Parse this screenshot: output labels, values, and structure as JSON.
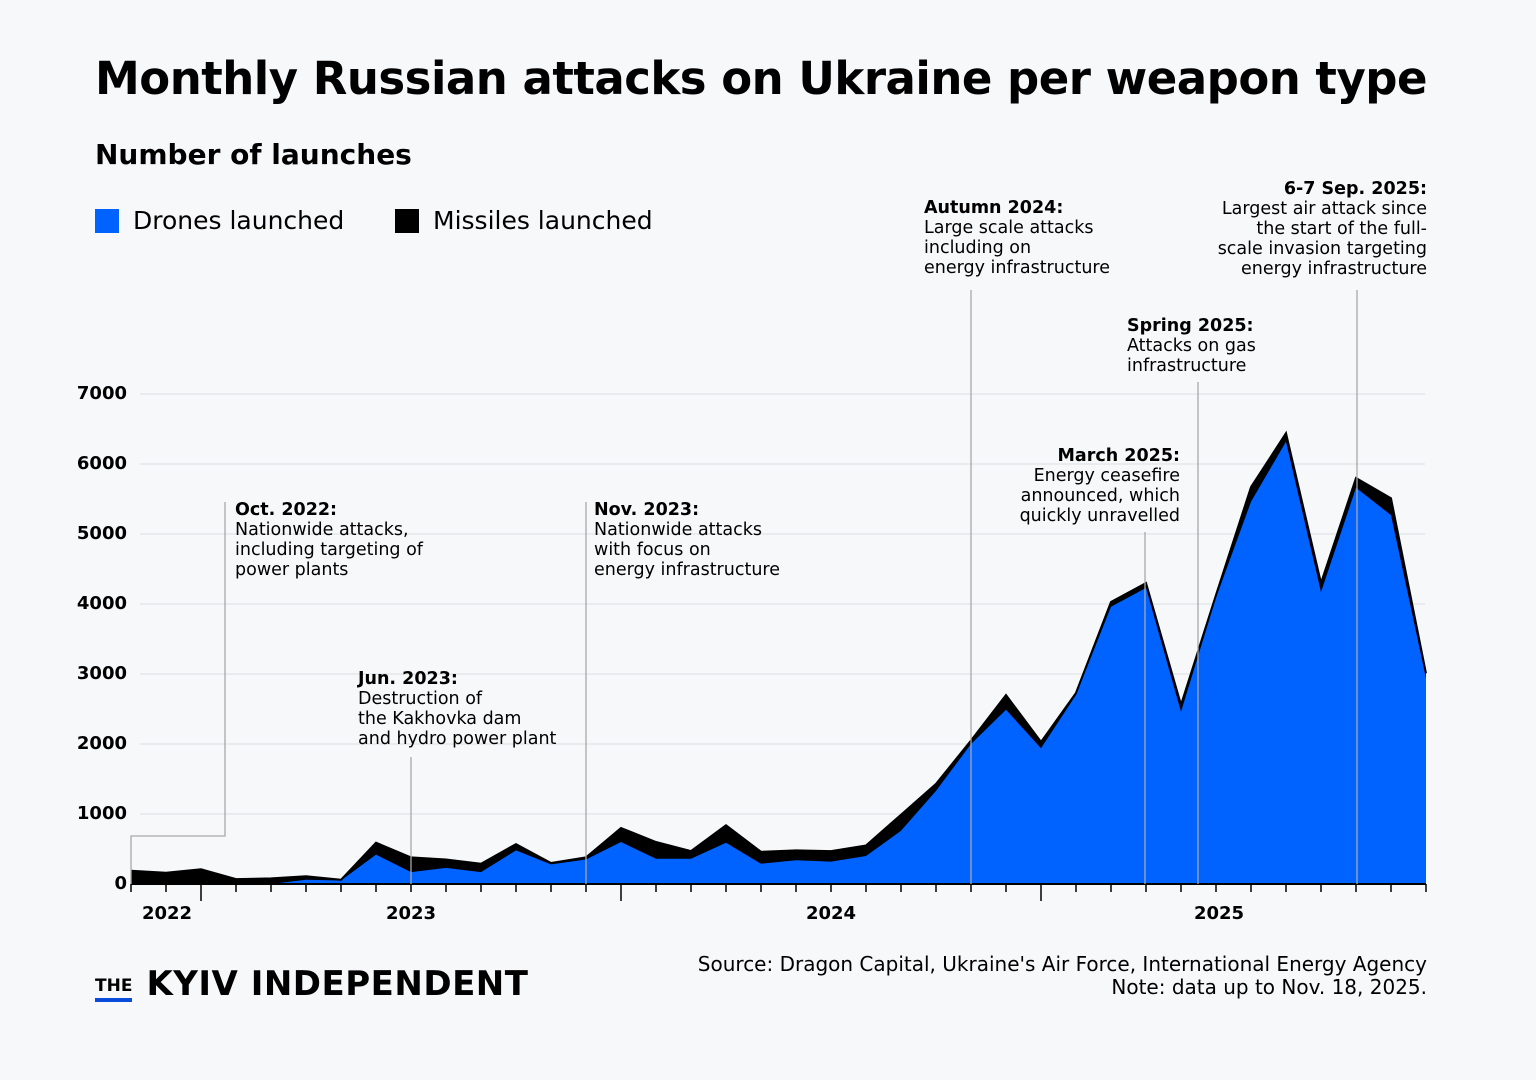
{
  "chart_data": {
    "type": "area",
    "stacked": true,
    "title": "Monthly Russian attacks on Ukraine per weapon type",
    "subtitle": "Number of launches",
    "xlabel": "",
    "ylabel": "",
    "ylim": [
      0,
      7000
    ],
    "yticks": [
      0,
      1000,
      2000,
      3000,
      4000,
      5000,
      6000,
      7000
    ],
    "grid": true,
    "legend_position": "top-left",
    "x_tick_labels": [
      "2022",
      "2023",
      "2024",
      "2025"
    ],
    "x": [
      "2022-10",
      "2022-11",
      "2022-12",
      "2023-01",
      "2023-02",
      "2023-03",
      "2023-04",
      "2023-05",
      "2023-06",
      "2023-07",
      "2023-08",
      "2023-09",
      "2023-10",
      "2023-11",
      "2023-12",
      "2024-01",
      "2024-02",
      "2024-03",
      "2024-04",
      "2024-05",
      "2024-06",
      "2024-07",
      "2024-08",
      "2024-09",
      "2024-10",
      "2024-11",
      "2024-12",
      "2025-01",
      "2025-02",
      "2025-03",
      "2025-04",
      "2025-05",
      "2025-06",
      "2025-07",
      "2025-08",
      "2025-09",
      "2025-10",
      "2025-11"
    ],
    "series": [
      {
        "name": "Drones launched",
        "color": "#0062ff",
        "values": [
          0,
          0,
          0,
          0,
          0,
          60,
          50,
          420,
          170,
          230,
          170,
          480,
          280,
          350,
          600,
          360,
          360,
          590,
          290,
          340,
          320,
          400,
          760,
          1330,
          2000,
          2490,
          1940,
          2700,
          3960,
          4230,
          2460,
          4090,
          5460,
          6320,
          4170,
          5660,
          5270,
          2940
        ]
      },
      {
        "name": "Missiles launched",
        "color": "#000000",
        "values": [
          190,
          160,
          210,
          70,
          80,
          50,
          10,
          170,
          210,
          120,
          120,
          90,
          20,
          30,
          200,
          240,
          110,
          250,
          170,
          140,
          150,
          150,
          230,
          100,
          50,
          210,
          90,
          30,
          70,
          70,
          100,
          40,
          210,
          120,
          130,
          140,
          240,
          70
        ]
      }
    ],
    "annotations": [
      {
        "date": "Oct. 2022",
        "heading": "Oct. 2022:",
        "text": "Nationwide attacks,\nincluding targeting of\npower plants"
      },
      {
        "date": "Jun. 2023",
        "heading": "Jun. 2023:",
        "text": "Destruction of\nthe Kakhovka dam\nand hydro power plant"
      },
      {
        "date": "Nov. 2023",
        "heading": "Nov. 2023:",
        "text": "Nationwide attacks\nwith focus on\nenergy infrastructure"
      },
      {
        "date": "Autumn 2024",
        "heading": "Autumn 2024:",
        "text": "Large scale attacks\nincluding on\nenergy infrastructure"
      },
      {
        "date": "March 2025",
        "heading": "March 2025:",
        "text": "Energy ceasefire\nannounced, which\nquickly unravelled"
      },
      {
        "date": "Spring 2025",
        "heading": "Spring 2025:",
        "text": "Attacks on gas\ninfrastructure"
      },
      {
        "date": "6-7 Sep. 2025",
        "heading": "6-7 Sep. 2025:",
        "text": "Largest air attack since\nthe start of the full-\nscale invasion targeting\nenergy infrastructure"
      }
    ]
  },
  "legend": [
    {
      "label": "Drones launched",
      "color": "#0062ff"
    },
    {
      "label": "Missiles launched",
      "color": "#000000"
    }
  ],
  "footer": {
    "logo_the": "THE",
    "logo_name": "KYIV INDEPENDENT",
    "source": "Source: Dragon Capital, Ukraine's Air Force, International Energy Agency",
    "note": "Note: data up to Nov. 18, 2025."
  }
}
